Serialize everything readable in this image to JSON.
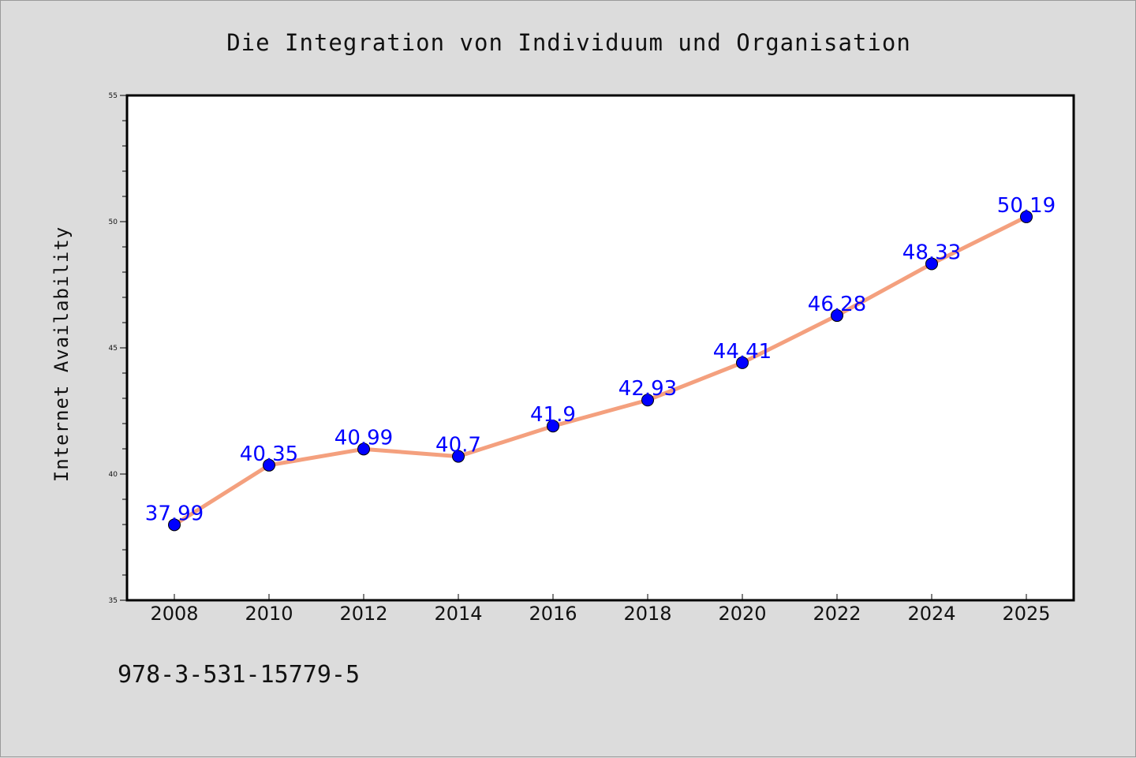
{
  "chart_data": {
    "type": "line",
    "title": "Die Integration von Individuum und Organisation",
    "xlabel": "",
    "ylabel": "Internet Availability",
    "categories": [
      "2008",
      "2010",
      "2012",
      "2014",
      "2016",
      "2018",
      "2020",
      "2022",
      "2024",
      "2025"
    ],
    "series": [
      {
        "values": [
          37.99,
          40.35,
          40.99,
          40.7,
          41.9,
          42.93,
          44.41,
          46.28,
          48.33,
          50.19
        ],
        "labels": [
          "37.99",
          "40.35",
          "40.99",
          "40.7",
          "41.9",
          "42.93",
          "44.41",
          "46.28",
          "48.33",
          "50.19"
        ],
        "line_color": "#f4a07e",
        "marker_color": "#0000ff"
      }
    ],
    "ylim": [
      35,
      55
    ],
    "yticks": [
      "35",
      "40",
      "45",
      "50",
      "55"
    ],
    "grid": false,
    "legend": "none",
    "background": "#dcdcdc",
    "plot_background": "#ffffff"
  },
  "annotation": {
    "isbn": "978-3-531-15779-5"
  }
}
